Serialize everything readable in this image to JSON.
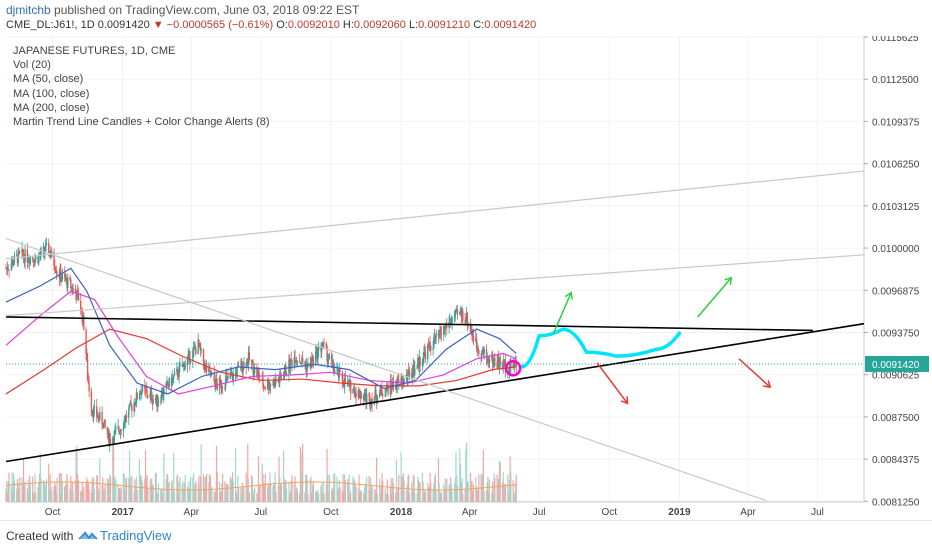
{
  "header": {
    "user": "djmitchb",
    "published": "published on TradingView.com, June 03, 2018 09:22 EST",
    "symbol": "CME_DL:J61!, 1D",
    "last": "0.0091420",
    "change": "−0.0000565 (−0.61%)",
    "open_label": "O:",
    "open": "0.0092010",
    "high_label": "H:",
    "high": "0.0092060",
    "low_label": "L:",
    "low": "0.0091210",
    "close_label": "C:",
    "close": "0.0091420"
  },
  "legend": {
    "title": "JAPANESE FUTURES, 1D, CME",
    "items": [
      "Vol (20)",
      "MA (50, close)",
      "MA (100, close)",
      "MA (200, close)",
      "Martin Trend Line Candles + Color Change Alerts (8)"
    ]
  },
  "footer": {
    "created": "Created with",
    "brand": "TradingView"
  },
  "chart_data": {
    "type": "candlestick",
    "title": "JAPANESE FUTURES, 1D, CME",
    "y_ticks": [
      "0.0115625",
      "0.0112500",
      "0.0109375",
      "0.0106250",
      "0.0103125",
      "0.0100000",
      "0.0096875",
      "0.0093750",
      "0.0090625",
      "0.0087500",
      "0.0084375",
      "0.0081250"
    ],
    "x_ticks": [
      "Oct",
      "2017",
      "Apr",
      "Jul",
      "Oct",
      "2018",
      "Apr",
      "Jul",
      "Oct",
      "2019",
      "Apr",
      "Jul"
    ],
    "last_price_label": "0.0091420",
    "ylim": [
      0.00812,
      0.01157
    ],
    "price_path": [
      [
        "2016-08-01",
        0.00985
      ],
      [
        "2016-08-20",
        0.00995
      ],
      [
        "2016-09-10",
        0.00992
      ],
      [
        "2016-09-25",
        0.01
      ],
      [
        "2016-10-10",
        0.0098
      ],
      [
        "2016-10-25",
        0.00972
      ],
      [
        "2016-11-05",
        0.00962
      ],
      [
        "2016-11-12",
        0.0094
      ],
      [
        "2016-11-16",
        0.00905
      ],
      [
        "2016-11-22",
        0.0088
      ],
      [
        "2016-12-05",
        0.00872
      ],
      [
        "2016-12-15",
        0.00858
      ],
      [
        "2016-12-28",
        0.00866
      ],
      [
        "2017-01-10",
        0.0088
      ],
      [
        "2017-01-25",
        0.00895
      ],
      [
        "2017-02-15",
        0.00887
      ],
      [
        "2017-03-01",
        0.00898
      ],
      [
        "2017-03-20",
        0.00912
      ],
      [
        "2017-04-10",
        0.00928
      ],
      [
        "2017-04-20",
        0.0091
      ],
      [
        "2017-05-05",
        0.00898
      ],
      [
        "2017-05-25",
        0.00905
      ],
      [
        "2017-06-15",
        0.00918
      ],
      [
        "2017-07-05",
        0.00898
      ],
      [
        "2017-07-25",
        0.00902
      ],
      [
        "2017-08-15",
        0.0092
      ],
      [
        "2017-09-01",
        0.00912
      ],
      [
        "2017-09-20",
        0.00928
      ],
      [
        "2017-10-05",
        0.0091
      ],
      [
        "2017-10-20",
        0.009
      ],
      [
        "2017-11-05",
        0.00893
      ],
      [
        "2017-11-20",
        0.00888
      ],
      [
        "2017-12-05",
        0.00893
      ],
      [
        "2017-12-20",
        0.00898
      ],
      [
        "2018-01-05",
        0.00902
      ],
      [
        "2018-01-20",
        0.00912
      ],
      [
        "2018-02-05",
        0.00925
      ],
      [
        "2018-02-20",
        0.00935
      ],
      [
        "2018-03-05",
        0.00945
      ],
      [
        "2018-03-20",
        0.00952
      ],
      [
        "2018-03-28",
        0.00948
      ],
      [
        "2018-04-10",
        0.00928
      ],
      [
        "2018-04-25",
        0.00918
      ],
      [
        "2018-05-10",
        0.00915
      ],
      [
        "2018-05-20",
        0.00912
      ],
      [
        "2018-06-01",
        0.009142
      ]
    ],
    "ma50": [
      [
        "2016-08-01",
        0.0096
      ],
      [
        "2016-09-15",
        0.00972
      ],
      [
        "2016-10-25",
        0.00985
      ],
      [
        "2016-11-15",
        0.00968
      ],
      [
        "2016-12-15",
        0.00928
      ],
      [
        "2017-01-20",
        0.009
      ],
      [
        "2017-03-01",
        0.00892
      ],
      [
        "2017-04-15",
        0.00905
      ],
      [
        "2017-06-01",
        0.00912
      ],
      [
        "2017-07-20",
        0.0091
      ],
      [
        "2017-09-10",
        0.00914
      ],
      [
        "2017-10-25",
        0.0091
      ],
      [
        "2017-12-10",
        0.00896
      ],
      [
        "2018-01-20",
        0.00902
      ],
      [
        "2018-03-01",
        0.00925
      ],
      [
        "2018-04-10",
        0.0094
      ],
      [
        "2018-05-10",
        0.00933
      ],
      [
        "2018-06-01",
        0.00922
      ]
    ],
    "ma100": [
      [
        "2016-08-01",
        0.00928
      ],
      [
        "2016-09-15",
        0.0095
      ],
      [
        "2016-10-25",
        0.00968
      ],
      [
        "2016-11-25",
        0.00962
      ],
      [
        "2016-12-25",
        0.00935
      ],
      [
        "2017-02-01",
        0.00905
      ],
      [
        "2017-03-15",
        0.00892
      ],
      [
        "2017-05-01",
        0.00898
      ],
      [
        "2017-06-20",
        0.00905
      ],
      [
        "2017-08-10",
        0.00906
      ],
      [
        "2017-09-30",
        0.00908
      ],
      [
        "2017-11-20",
        0.00902
      ],
      [
        "2018-01-10",
        0.009
      ],
      [
        "2018-02-25",
        0.00906
      ],
      [
        "2018-04-10",
        0.00918
      ],
      [
        "2018-05-15",
        0.00922
      ],
      [
        "2018-06-01",
        0.00918
      ]
    ],
    "ma200": [
      [
        "2016-08-01",
        0.00892
      ],
      [
        "2016-09-20",
        0.0091
      ],
      [
        "2016-11-01",
        0.00926
      ],
      [
        "2016-12-15",
        0.0094
      ],
      [
        "2017-02-01",
        0.00933
      ],
      [
        "2017-03-20",
        0.0092
      ],
      [
        "2017-05-10",
        0.00908
      ],
      [
        "2017-07-01",
        0.00902
      ],
      [
        "2017-08-25",
        0.00903
      ],
      [
        "2017-10-15",
        0.009
      ],
      [
        "2017-12-05",
        0.00898
      ],
      [
        "2018-01-25",
        0.00898
      ],
      [
        "2018-03-15",
        0.00902
      ],
      [
        "2018-05-01",
        0.0091
      ],
      [
        "2018-06-01",
        0.00912
      ]
    ],
    "trendlines": [
      {
        "color": "#000000",
        "from": [
          "2016-08-01",
          0.00949
        ],
        "to": [
          "2019-06-25",
          0.00939
        ]
      },
      {
        "color": "#000000",
        "from": [
          "2016-08-01",
          0.00842
        ],
        "to": [
          "2019-08-31",
          0.00944
        ]
      },
      {
        "color": "#c8c8c8",
        "from": [
          "2016-08-01",
          0.00992
        ],
        "to": [
          "2019-08-31",
          0.01057
        ]
      },
      {
        "color": "#c8c8c8",
        "from": [
          "2016-08-01",
          0.0095
        ],
        "to": [
          "2019-08-31",
          0.00995
        ]
      },
      {
        "color": "#c8c8c8",
        "from": [
          "2016-08-01",
          0.01007
        ],
        "to": [
          "2019-04-25",
          0.00813
        ]
      }
    ],
    "colors": {
      "up": "#26a69a",
      "down": "#ef5350",
      "ma50": "#3a62c2",
      "ma100": "#e040e0",
      "ma200": "#e53935",
      "projection": "#00e5ff",
      "marker": "#ff00cc",
      "arrow_up": "#2ecc40",
      "arrow_down": "#e53935"
    }
  }
}
